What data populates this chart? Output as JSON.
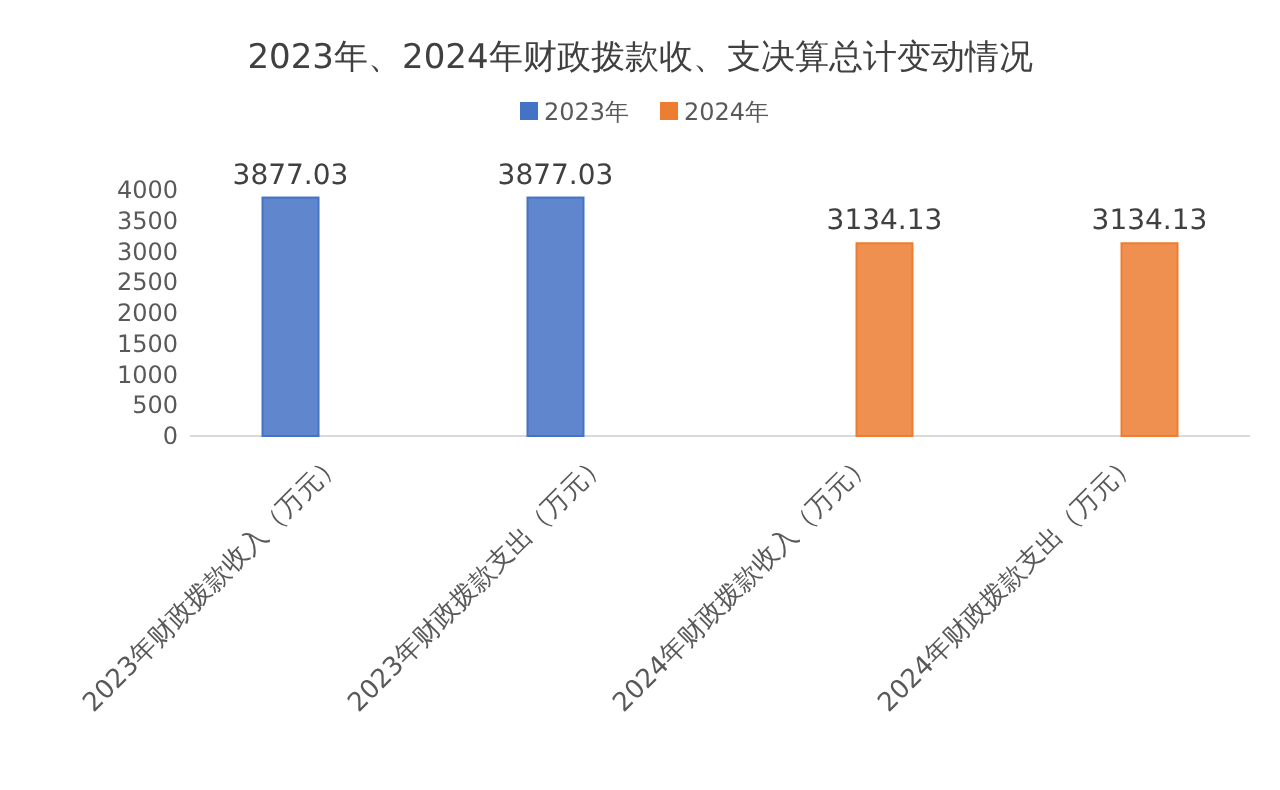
{
  "chart_data": {
    "type": "bar",
    "title": "2023年、2024年财政拨款收、支决算总计变动情况",
    "categories": [
      "2023年财政拨款收入（万元）",
      "2023年财政拨款支出（万元）",
      "2024年财政拨款收入（万元）",
      "2024年财政拨款支出（万元）"
    ],
    "series": [
      {
        "name": "2023年",
        "color": "#4472c4",
        "values": [
          3877.03,
          3877.03,
          null,
          null
        ]
      },
      {
        "name": "2024年",
        "color": "#ed7d31",
        "values": [
          null,
          null,
          3134.13,
          3134.13
        ]
      }
    ],
    "ylim": [
      0,
      4000
    ],
    "yticks": [
      0,
      500,
      1000,
      1500,
      2000,
      2500,
      3000,
      3500,
      4000
    ],
    "data_labels": true,
    "legend": "top",
    "grid": false
  }
}
